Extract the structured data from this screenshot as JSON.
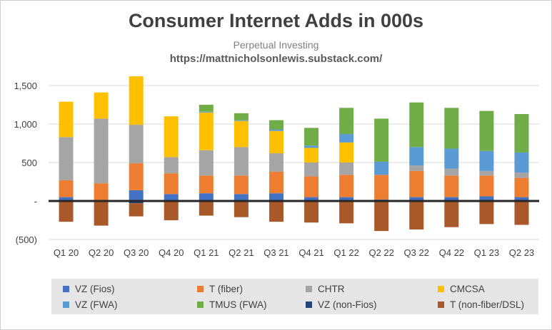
{
  "title": "Consumer Internet Adds in 000s",
  "subtitle": "Perpetual Investing",
  "url": "https://mattnicholsonlewis.substack.com/",
  "chart_data": {
    "type": "bar",
    "stacked": true,
    "categories": [
      "Q1 20",
      "Q2 20",
      "Q3 20",
      "Q4 20",
      "Q1 21",
      "Q2 21",
      "Q3 21",
      "Q4 21",
      "Q1 22",
      "Q2 22",
      "Q3 22",
      "Q4 22",
      "Q1 23",
      "Q2 23"
    ],
    "ylim": [
      -500,
      1650
    ],
    "yticks": [
      -500,
      0,
      500,
      1000,
      1500
    ],
    "ytick_labels": [
      "(500)",
      "-",
      "500",
      "1,000",
      "1,500"
    ],
    "grid": true,
    "legend_position": "bottom",
    "series": [
      {
        "name": "VZ (Fios)",
        "color": "#4472c4",
        "values": [
          50,
          0,
          140,
          90,
          100,
          90,
          100,
          50,
          50,
          20,
          50,
          50,
          60,
          50
        ]
      },
      {
        "name": "T (fiber)",
        "color": "#ed7d31",
        "values": [
          220,
          230,
          350,
          270,
          230,
          240,
          280,
          270,
          290,
          320,
          340,
          280,
          270,
          250
        ]
      },
      {
        "name": "CHTR",
        "color": "#a5a5a5",
        "values": [
          560,
          840,
          500,
          210,
          330,
          370,
          240,
          180,
          160,
          0,
          70,
          90,
          60,
          70
        ]
      },
      {
        "name": "CMCSA",
        "color": "#ffc000",
        "values": [
          460,
          340,
          630,
          530,
          490,
          340,
          290,
          190,
          260,
          0,
          0,
          0,
          0,
          0
        ]
      },
      {
        "name": "VZ (FWA)",
        "color": "#5b9bd5",
        "values": [
          0,
          0,
          0,
          0,
          10,
          10,
          20,
          30,
          110,
          170,
          240,
          260,
          260,
          260
        ]
      },
      {
        "name": "TMUS (FWA)",
        "color": "#70ad47",
        "values": [
          0,
          0,
          0,
          0,
          90,
          90,
          120,
          230,
          340,
          560,
          580,
          530,
          520,
          500
        ]
      },
      {
        "name": "VZ (non-Fios)",
        "color": "#264478",
        "values": [
          0,
          0,
          -30,
          0,
          0,
          0,
          0,
          0,
          0,
          -10,
          -10,
          -10,
          0,
          -10
        ]
      },
      {
        "name": "T (non-fiber/DSL)",
        "color": "#a9582a",
        "values": [
          -270,
          -320,
          -170,
          -250,
          -190,
          -210,
          -270,
          -280,
          -290,
          -380,
          -360,
          -330,
          -300,
          -300
        ]
      }
    ]
  }
}
